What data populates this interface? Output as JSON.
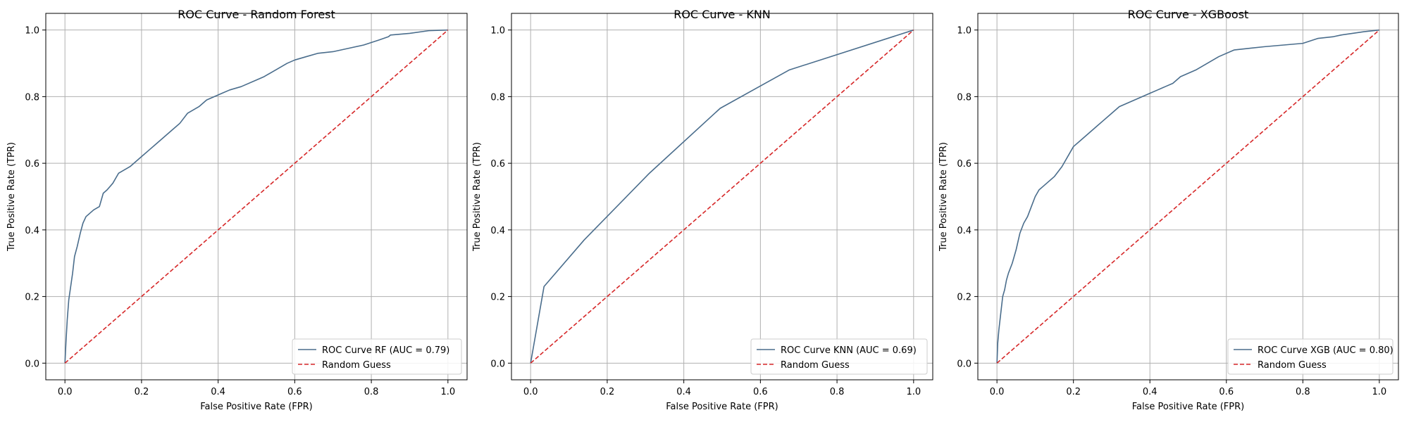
{
  "colors": {
    "roc": "#4a6d8c",
    "baseline": "#d62728",
    "grid": "#b0b0b0",
    "axis": "#000000"
  },
  "chart_data": [
    {
      "type": "line",
      "title": "ROC Curve - Random Forest",
      "xlabel": "False Positive Rate (FPR)",
      "ylabel": "True Positive Rate (TPR)",
      "xlim": [
        -0.05,
        1.05
      ],
      "ylim": [
        -0.05,
        1.05
      ],
      "xticks": [
        0.0,
        0.2,
        0.4,
        0.6,
        0.8,
        1.0
      ],
      "yticks": [
        0.0,
        0.2,
        0.4,
        0.6,
        0.8,
        1.0
      ],
      "xtick_labels": [
        "0.0",
        "0.2",
        "0.4",
        "0.6",
        "0.8",
        "1.0"
      ],
      "ytick_labels": [
        "0.0",
        "0.2",
        "0.4",
        "0.6",
        "0.8",
        "1.0"
      ],
      "grid": true,
      "legend_position": "lower-right",
      "series": [
        {
          "name": "ROC Curve RF (AUC = 0.79)",
          "style": "solid",
          "x": [
            0.0,
            0.003,
            0.006,
            0.01,
            0.015,
            0.02,
            0.025,
            0.032,
            0.04,
            0.047,
            0.055,
            0.065,
            0.075,
            0.09,
            0.1,
            0.11,
            0.125,
            0.14,
            0.155,
            0.17,
            0.18,
            0.2,
            0.22,
            0.24,
            0.26,
            0.28,
            0.3,
            0.32,
            0.35,
            0.37,
            0.39,
            0.41,
            0.43,
            0.46,
            0.5,
            0.52,
            0.55,
            0.58,
            0.6,
            0.63,
            0.66,
            0.7,
            0.74,
            0.78,
            0.82,
            0.845,
            0.85,
            0.9,
            0.95,
            1.0
          ],
          "y": [
            0.0,
            0.07,
            0.13,
            0.19,
            0.23,
            0.27,
            0.32,
            0.35,
            0.39,
            0.42,
            0.44,
            0.45,
            0.46,
            0.47,
            0.51,
            0.52,
            0.54,
            0.57,
            0.58,
            0.59,
            0.6,
            0.62,
            0.64,
            0.66,
            0.68,
            0.7,
            0.72,
            0.75,
            0.77,
            0.79,
            0.8,
            0.81,
            0.82,
            0.83,
            0.85,
            0.86,
            0.88,
            0.9,
            0.91,
            0.92,
            0.93,
            0.935,
            0.945,
            0.955,
            0.97,
            0.98,
            0.985,
            0.99,
            0.998,
            1.0
          ]
        },
        {
          "name": "Random Guess",
          "style": "dashed",
          "x": [
            0.0,
            1.0
          ],
          "y": [
            0.0,
            1.0
          ]
        }
      ]
    },
    {
      "type": "line",
      "title": "ROC Curve - KNN",
      "xlabel": "False Positive Rate (FPR)",
      "ylabel": "True Positive Rate (TPR)",
      "xlim": [
        -0.05,
        1.05
      ],
      "ylim": [
        -0.05,
        1.05
      ],
      "xticks": [
        0.0,
        0.2,
        0.4,
        0.6,
        0.8,
        1.0
      ],
      "yticks": [
        0.0,
        0.2,
        0.4,
        0.6,
        0.8,
        1.0
      ],
      "xtick_labels": [
        "0.0",
        "0.2",
        "0.4",
        "0.6",
        "0.8",
        "1.0"
      ],
      "ytick_labels": [
        "0.0",
        "0.2",
        "0.4",
        "0.6",
        "0.8",
        "1.0"
      ],
      "grid": true,
      "legend_position": "lower-right",
      "series": [
        {
          "name": "ROC Curve KNN (AUC = 0.69)",
          "style": "solid",
          "x": [
            0.0,
            0.035,
            0.14,
            0.31,
            0.495,
            0.675,
            1.0
          ],
          "y": [
            0.0,
            0.23,
            0.37,
            0.57,
            0.765,
            0.88,
            1.0
          ]
        },
        {
          "name": "Random Guess",
          "style": "dashed",
          "x": [
            0.0,
            1.0
          ],
          "y": [
            0.0,
            1.0
          ]
        }
      ]
    },
    {
      "type": "line",
      "title": "ROC Curve - XGBoost",
      "xlabel": "False Positive Rate (FPR)",
      "ylabel": "True Positive Rate (TPR)",
      "xlim": [
        -0.05,
        1.05
      ],
      "ylim": [
        -0.05,
        1.05
      ],
      "xticks": [
        0.0,
        0.2,
        0.4,
        0.6,
        0.8,
        1.0
      ],
      "yticks": [
        0.0,
        0.2,
        0.4,
        0.6,
        0.8,
        1.0
      ],
      "xtick_labels": [
        "0.0",
        "0.2",
        "0.4",
        "0.6",
        "0.8",
        "1.0"
      ],
      "ytick_labels": [
        "0.0",
        "0.2",
        "0.4",
        "0.6",
        "0.8",
        "1.0"
      ],
      "grid": true,
      "legend_position": "lower-right",
      "series": [
        {
          "name": "ROC Curve XGB (AUC = 0.80)",
          "style": "solid",
          "x": [
            0.0,
            0.002,
            0.005,
            0.01,
            0.015,
            0.02,
            0.025,
            0.03,
            0.04,
            0.05,
            0.06,
            0.07,
            0.08,
            0.09,
            0.1,
            0.11,
            0.12,
            0.13,
            0.15,
            0.17,
            0.19,
            0.2,
            0.22,
            0.24,
            0.26,
            0.28,
            0.3,
            0.32,
            0.34,
            0.36,
            0.38,
            0.4,
            0.42,
            0.44,
            0.46,
            0.48,
            0.5,
            0.52,
            0.55,
            0.58,
            0.62,
            0.66,
            0.7,
            0.75,
            0.8,
            0.84,
            0.88,
            0.9,
            0.93,
            0.96,
            1.0
          ],
          "y": [
            0.0,
            0.06,
            0.1,
            0.15,
            0.2,
            0.22,
            0.25,
            0.27,
            0.3,
            0.34,
            0.39,
            0.42,
            0.44,
            0.47,
            0.5,
            0.52,
            0.53,
            0.54,
            0.56,
            0.59,
            0.63,
            0.65,
            0.67,
            0.69,
            0.71,
            0.73,
            0.75,
            0.77,
            0.78,
            0.79,
            0.8,
            0.81,
            0.82,
            0.83,
            0.84,
            0.86,
            0.87,
            0.88,
            0.9,
            0.92,
            0.94,
            0.945,
            0.95,
            0.955,
            0.96,
            0.975,
            0.98,
            0.985,
            0.99,
            0.995,
            1.0
          ]
        },
        {
          "name": "Random Guess",
          "style": "dashed",
          "x": [
            0.0,
            1.0
          ],
          "y": [
            0.0,
            1.0
          ]
        }
      ]
    }
  ]
}
